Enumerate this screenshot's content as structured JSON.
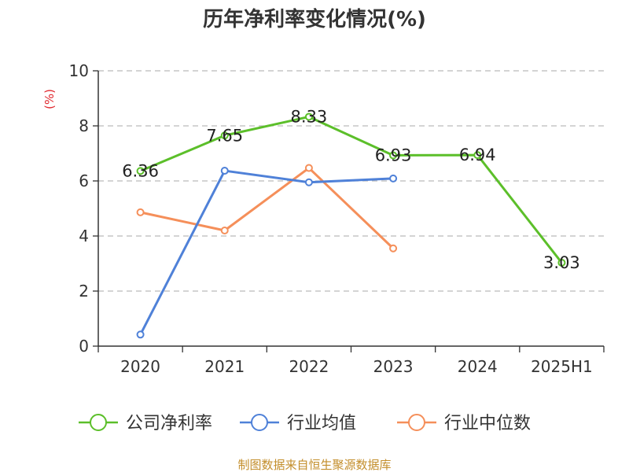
{
  "chart_data": {
    "type": "line",
    "title": "历年净利率变化情况(%)",
    "ylabel": "(%)",
    "xlabel": "",
    "ylim": [
      0,
      10
    ],
    "y_ticks": [
      "0",
      "2",
      "4",
      "6",
      "8",
      "10"
    ],
    "grid": true,
    "legend_position": "bottom",
    "categories": [
      "2020",
      "2021",
      "2022",
      "2023",
      "2024",
      "2025H1"
    ],
    "series": [
      {
        "name": "公司净利率",
        "color": "#5cbf2a",
        "values": [
          6.36,
          7.65,
          8.33,
          6.93,
          6.94,
          3.03
        ],
        "labels": [
          "6.36",
          "7.65",
          "8.33",
          "6.93",
          "6.94",
          "3.03"
        ],
        "show_labels": true
      },
      {
        "name": "行业均值",
        "color": "#4f81d8",
        "values": [
          0.42,
          6.37,
          5.95,
          6.09,
          null,
          null
        ],
        "show_labels": false
      },
      {
        "name": "行业中位数",
        "color": "#f58f5a",
        "values": [
          4.86,
          4.2,
          6.47,
          3.55,
          null,
          null
        ],
        "show_labels": false
      }
    ]
  },
  "footer": {
    "text": "制图数据来自恒生聚源数据库",
    "color": "#c38e2b"
  },
  "styles": {
    "unit_color": "#e0282e",
    "axis_color": "#333333",
    "grid_color": "#bbbbbb"
  }
}
